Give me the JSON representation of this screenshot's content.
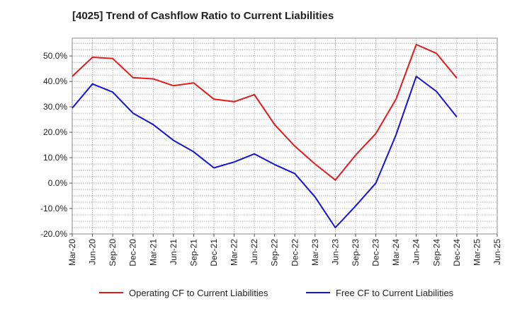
{
  "chart_data": {
    "type": "line",
    "title": "[4025]  Trend of Cashflow Ratio to Current Liabilities",
    "categories": [
      "Mar-20",
      "Jun-20",
      "Sep-20",
      "Dec-20",
      "Mar-21",
      "Jun-21",
      "Sep-21",
      "Dec-21",
      "Mar-22",
      "Jun-22",
      "Sep-22",
      "Dec-22",
      "Mar-23",
      "Jun-23",
      "Sep-23",
      "Dec-23",
      "Mar-24",
      "Jun-24",
      "Sep-24",
      "Dec-24",
      "Mar-25",
      "Jun-25"
    ],
    "y_tick_labels": [
      "50.0%",
      "40.0%",
      "30.0%",
      "20.0%",
      "10.0%",
      "0.0%",
      "-10.0%",
      "-20.0%"
    ],
    "y_ticks": [
      50,
      40,
      30,
      20,
      10,
      0,
      -10,
      -20
    ],
    "ylim": [
      -20,
      57
    ],
    "grid": true,
    "legend_position": "bottom",
    "series": [
      {
        "name": "Operating CF to Current Liabilities",
        "color": "#e31a1c",
        "values": [
          42.0,
          49.5,
          49.0,
          41.5,
          41.0,
          38.3,
          39.4,
          33.0,
          32.0,
          34.8,
          23.0,
          14.5,
          7.5,
          1.2,
          11.0,
          19.5,
          33.0,
          54.5,
          51.0,
          41.3,
          null,
          null
        ]
      },
      {
        "name": "Free CF to Current Liabilities",
        "color": "#1414d6",
        "values": [
          29.5,
          39.0,
          35.8,
          27.5,
          23.0,
          16.8,
          12.3,
          6.0,
          8.3,
          11.5,
          7.3,
          3.7,
          -5.5,
          -17.5,
          -9.0,
          0.0,
          19.0,
          42.0,
          36.0,
          26.0,
          null,
          null
        ]
      }
    ]
  }
}
